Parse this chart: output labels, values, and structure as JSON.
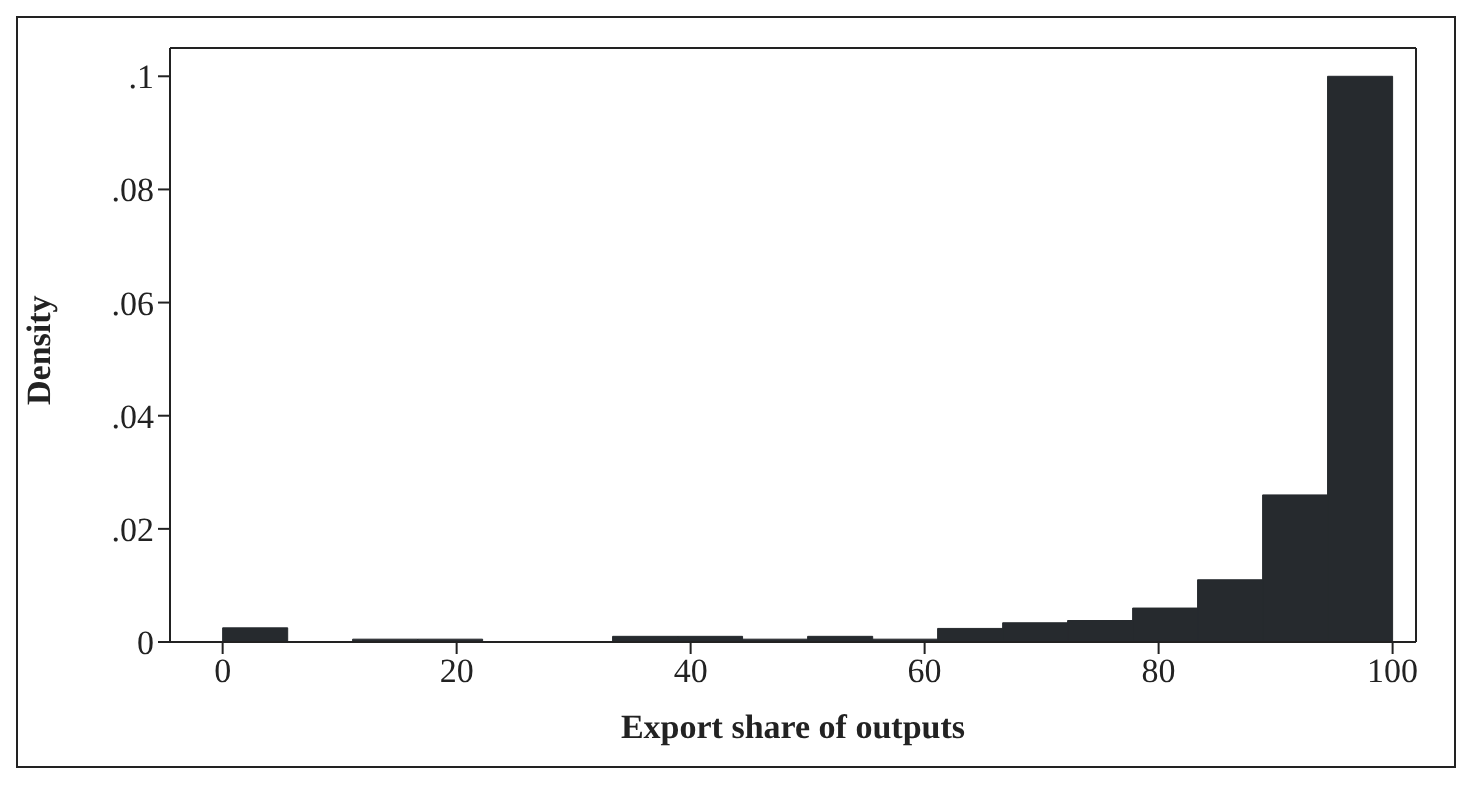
{
  "chart_data": {
    "type": "histogram",
    "xlabel": "Export share of outputs",
    "ylabel": "Density",
    "bins": [
      0,
      5.56,
      11.11,
      16.67,
      22.22,
      27.78,
      33.33,
      38.89,
      44.44,
      50,
      55.56,
      61.11,
      66.67,
      72.22,
      77.78,
      83.33,
      88.89,
      94.44,
      100
    ],
    "values": [
      0.0025,
      0,
      0.0005,
      0.0005,
      0,
      0,
      0.001,
      0.001,
      0.0005,
      0.001,
      0.0005,
      0.0024,
      0.0034,
      0.0038,
      0.006,
      0.011,
      0.026,
      0.1
    ],
    "color": "#262a2e",
    "xlim": [
      -4.5,
      102
    ],
    "xticks": [
      0,
      20,
      40,
      60,
      80,
      100
    ],
    "ylim": [
      0,
      0.105
    ],
    "yticks": [
      {
        "value": 0,
        "label": "0"
      },
      {
        "value": 0.02,
        "label": ".02"
      },
      {
        "value": 0.04,
        "label": ".04"
      },
      {
        "value": 0.06,
        "label": ".06"
      },
      {
        "value": 0.08,
        "label": ".08"
      },
      {
        "value": 0.1,
        "label": ".1"
      }
    ],
    "grid": false
  }
}
